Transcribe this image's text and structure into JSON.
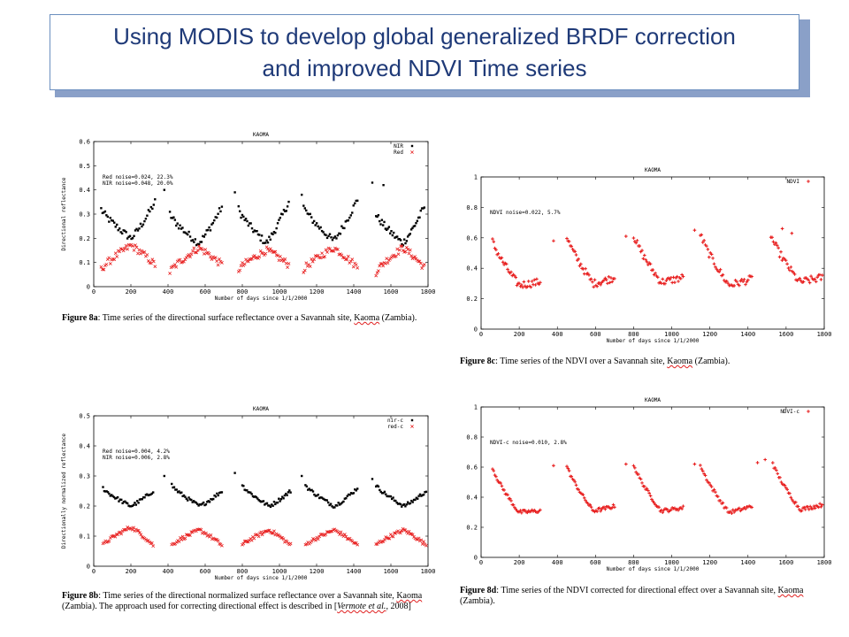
{
  "slide": {
    "title_line1": "Using MODIS to develop global generalized  BRDF correction",
    "title_line2": "and improved NDVI Time series",
    "title_color": "#1f3a78"
  },
  "chart_data": [
    {
      "id": "8a",
      "type": "scatter",
      "title": "KAOMA",
      "xlabel": "Number of days since 1/1/2000",
      "ylabel": "Directional reflectance",
      "xlim": [
        0,
        1800
      ],
      "ylim": [
        0,
        0.6
      ],
      "xticks": [
        0,
        200,
        400,
        600,
        800,
        1000,
        1200,
        1400,
        1600,
        1800
      ],
      "yticks": [
        0,
        0.1,
        0.2,
        0.3,
        0.4,
        0.5,
        0.6
      ],
      "annotation_lines": [
        "Red noise=0.024, 22.3%",
        "NIR noise=0.048, 20.0%"
      ],
      "legend_position": "top-right",
      "series": [
        {
          "name": "NIR",
          "color": "#000000",
          "marker": "dot",
          "cycles": [
            [
              40,
              330,
              0.32,
              0.2,
              0.35
            ],
            [
              410,
              690,
              0.3,
              0.18,
              0.33
            ],
            [
              780,
              1050,
              0.32,
              0.18,
              0.35
            ],
            [
              1130,
              1420,
              0.33,
              0.19,
              0.36
            ],
            [
              1520,
              1780,
              0.3,
              0.18,
              0.33
            ]
          ],
          "extra_points": [
            [
              380,
              0.4
            ],
            [
              760,
              0.39
            ],
            [
              1120,
              0.38
            ],
            [
              1500,
              0.43
            ],
            [
              1560,
              0.42
            ]
          ]
        },
        {
          "name": "Red",
          "color": "#e82020",
          "marker": "x",
          "cycles": [
            [
              40,
              330,
              0.07,
              0.17,
              0.09
            ],
            [
              410,
              690,
              0.06,
              0.16,
              0.09
            ],
            [
              780,
              1050,
              0.07,
              0.15,
              0.09
            ],
            [
              1130,
              1420,
              0.07,
              0.16,
              0.08
            ],
            [
              1520,
              1780,
              0.06,
              0.16,
              0.08
            ]
          ],
          "extra_points": []
        }
      ],
      "caption_label": "Figure 8a",
      "caption_text": ": Time series of the directional surface reflectance over a Savannah site, ",
      "caption_site": "Kaoma",
      "caption_tail": " (Zambia)."
    },
    {
      "id": "8c",
      "type": "scatter",
      "title": "KAOMA",
      "xlabel": "Number of days since 1/1/2000",
      "ylabel": "",
      "xlim": [
        0,
        1800
      ],
      "ylim": [
        0,
        1
      ],
      "xticks": [
        0,
        200,
        400,
        600,
        800,
        1000,
        1200,
        1400,
        1600,
        1800
      ],
      "yticks": [
        0,
        0.2,
        0.4,
        0.6,
        0.8,
        1
      ],
      "annotation_lines": [
        "NDVI noise=0.022, 5.7%"
      ],
      "legend_position": "top-right",
      "series": [
        {
          "name": "NDVI",
          "color": "#e82020",
          "marker": "plus",
          "cycles": [
            [
              60,
              310,
              0.58,
              0.29,
              0.31
            ],
            [
              450,
              700,
              0.61,
              0.3,
              0.34
            ],
            [
              800,
              1060,
              0.62,
              0.31,
              0.34
            ],
            [
              1150,
              1420,
              0.63,
              0.29,
              0.33
            ],
            [
              1520,
              1790,
              0.62,
              0.31,
              0.34
            ]
          ],
          "extra_points": [
            [
              380,
              0.58
            ],
            [
              760,
              0.61
            ],
            [
              1120,
              0.65
            ],
            [
              1580,
              0.66
            ],
            [
              1630,
              0.63
            ]
          ]
        }
      ],
      "caption_label": "Figure 8c",
      "caption_text": ": Time series of the NDVI over a Savannah site, ",
      "caption_site": "Kaoma",
      "caption_tail": " (Zambia)."
    },
    {
      "id": "8b",
      "type": "scatter",
      "title": "KAOMA",
      "xlabel": "Number of days since 1/1/2000",
      "ylabel": "Directionally normalized reflectance",
      "xlim": [
        0,
        1800
      ],
      "ylim": [
        0,
        0.5
      ],
      "xticks": [
        0,
        200,
        400,
        600,
        800,
        1000,
        1200,
        1400,
        1600,
        1800
      ],
      "yticks": [
        0,
        0.1,
        0.2,
        0.3,
        0.4,
        0.5
      ],
      "annotation_lines": [
        "Red noise=0.004, 4.2%",
        "NIR noise=0.006, 2.8%"
      ],
      "legend_position": "top-right",
      "series": [
        {
          "name": "nir-c",
          "color": "#000000",
          "marker": "dot",
          "cycles": [
            [
              50,
              320,
              0.26,
              0.2,
              0.25
            ],
            [
              420,
              690,
              0.27,
              0.2,
              0.25
            ],
            [
              800,
              1060,
              0.27,
              0.2,
              0.25
            ],
            [
              1140,
              1420,
              0.27,
              0.2,
              0.26
            ],
            [
              1520,
              1790,
              0.27,
              0.2,
              0.25
            ]
          ],
          "extra_points": [
            [
              380,
              0.3
            ],
            [
              760,
              0.31
            ],
            [
              1120,
              0.3
            ],
            [
              1500,
              0.29
            ]
          ]
        },
        {
          "name": "red-c",
          "color": "#e82020",
          "marker": "x",
          "cycles": [
            [
              50,
              320,
              0.07,
              0.13,
              0.07
            ],
            [
              420,
              690,
              0.07,
              0.12,
              0.07
            ],
            [
              800,
              1060,
              0.07,
              0.12,
              0.07
            ],
            [
              1140,
              1420,
              0.07,
              0.12,
              0.07
            ],
            [
              1520,
              1790,
              0.07,
              0.12,
              0.07
            ]
          ],
          "extra_points": []
        }
      ],
      "caption_label": "Figure 8b",
      "caption_text": ": Time series of the directional normalized surface reflectance over a Savannah site, ",
      "caption_site": "Kaoma",
      "caption_tail": " (Zambia). The approach used for correcting directional effect is described in [",
      "caption_ref": "Vermote et al.",
      "caption_end": ", 2008]"
    },
    {
      "id": "8d",
      "type": "scatter",
      "title": "KAOMA",
      "xlabel": "Number of days since 1/1/2000",
      "ylabel": "",
      "xlim": [
        0,
        1800
      ],
      "ylim": [
        0,
        1
      ],
      "xticks": [
        0,
        200,
        400,
        600,
        800,
        1000,
        1200,
        1400,
        1600,
        1800
      ],
      "yticks": [
        0,
        0.2,
        0.4,
        0.6,
        0.8,
        1
      ],
      "annotation_lines": [
        "NDVI-c noise=0.010, 2.8%"
      ],
      "legend_position": "top-right",
      "series": [
        {
          "name": "NDVI-c",
          "color": "#e82020",
          "marker": "plus",
          "cycles": [
            [
              60,
              310,
              0.6,
              0.3,
              0.31
            ],
            [
              450,
              700,
              0.61,
              0.31,
              0.34
            ],
            [
              800,
              1060,
              0.62,
              0.31,
              0.33
            ],
            [
              1150,
              1420,
              0.62,
              0.3,
              0.34
            ],
            [
              1530,
              1790,
              0.63,
              0.32,
              0.35
            ]
          ],
          "extra_points": [
            [
              380,
              0.61
            ],
            [
              760,
              0.62
            ],
            [
              1120,
              0.62
            ],
            [
              1490,
              0.65
            ],
            [
              1450,
              0.63
            ]
          ]
        }
      ],
      "caption_label": "Figure 8d",
      "caption_text": ": Time series of the NDVI corrected for directional effect over a Savannah site, ",
      "caption_site": "Kaoma",
      "caption_tail": " (Zambia)."
    }
  ]
}
